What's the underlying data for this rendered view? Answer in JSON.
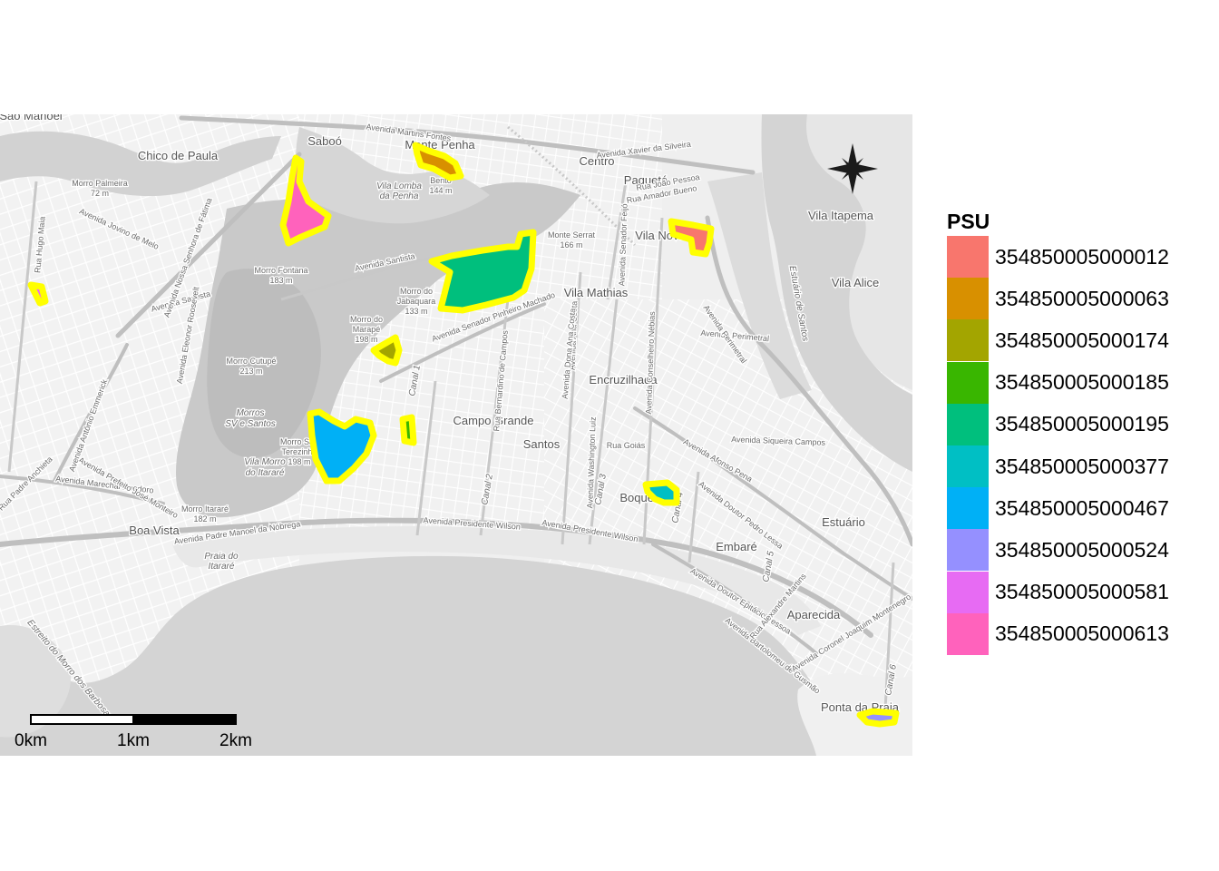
{
  "map": {
    "legend_title": "PSU",
    "psus": [
      {
        "id": "354850005000012",
        "color": "#F8766D"
      },
      {
        "id": "354850005000063",
        "color": "#D89000"
      },
      {
        "id": "354850005000174",
        "color": "#A3A500"
      },
      {
        "id": "354850005000185",
        "color": "#39B600"
      },
      {
        "id": "354850005000195",
        "color": "#00BF7D"
      },
      {
        "id": "354850005000377",
        "color": "#00BFC4"
      },
      {
        "id": "354850005000467",
        "color": "#00B0F6"
      },
      {
        "id": "354850005000524",
        "color": "#9590FF"
      },
      {
        "id": "354850005000581",
        "color": "#E76BF3"
      },
      {
        "id": "354850005000613",
        "color": "#FF62BC"
      }
    ],
    "outline_color": "#FFFF00",
    "scale_bar": {
      "labels": [
        "0km",
        "1km",
        "2km"
      ]
    },
    "place_labels": [
      {
        "text": "São Manoel",
        "cls": "big"
      },
      {
        "text": "Saboó",
        "cls": "big"
      },
      {
        "text": "Chico de Paula",
        "cls": "big"
      },
      {
        "text": "Morro Palmeira",
        "cls": "small"
      },
      {
        "text": "72 m",
        "cls": "small"
      },
      {
        "text": "Monte Penha",
        "cls": "big"
      },
      {
        "text": "Bento",
        "cls": "small"
      },
      {
        "text": "144 m",
        "cls": "small"
      },
      {
        "text": "Vila Lomba",
        "cls": "italic"
      },
      {
        "text": "da Penha",
        "cls": "italic"
      },
      {
        "text": "Centro",
        "cls": "big"
      },
      {
        "text": "Paquetá",
        "cls": "big"
      },
      {
        "text": "Vila Nova",
        "cls": "big"
      },
      {
        "text": "Vila Itapema",
        "cls": "big"
      },
      {
        "text": "Vila Alice",
        "cls": "big"
      },
      {
        "text": "Monte Serrat",
        "cls": "small"
      },
      {
        "text": "166 m",
        "cls": "small"
      },
      {
        "text": "Morro Fontana",
        "cls": "small"
      },
      {
        "text": "183 m",
        "cls": "small"
      },
      {
        "text": "Morro do",
        "cls": "small"
      },
      {
        "text": "Jabaquara",
        "cls": "small"
      },
      {
        "text": "133 m",
        "cls": "small"
      },
      {
        "text": "Morro do",
        "cls": "small"
      },
      {
        "text": "Marapé",
        "cls": "small"
      },
      {
        "text": "198 m",
        "cls": "small"
      },
      {
        "text": "Vila Mathias",
        "cls": "big"
      },
      {
        "text": "Morro Cutupé",
        "cls": "small"
      },
      {
        "text": "213 m",
        "cls": "small"
      },
      {
        "text": "Encruzilhada",
        "cls": "big"
      },
      {
        "text": "Morros",
        "cls": "italic"
      },
      {
        "text": "SV e Santos",
        "cls": "italic"
      },
      {
        "text": "Campo Grande",
        "cls": "big"
      },
      {
        "text": "Santos",
        "cls": "big"
      },
      {
        "text": "Rua Goiás",
        "cls": "small"
      },
      {
        "text": "Morro São",
        "cls": "small"
      },
      {
        "text": "Terezinha",
        "cls": "small"
      },
      {
        "text": "198 m",
        "cls": "small"
      },
      {
        "text": "Vila Morro",
        "cls": "italic"
      },
      {
        "text": "do Itararé",
        "cls": "italic"
      },
      {
        "text": "Boqueirão",
        "cls": "big"
      },
      {
        "text": "Morro Itararé",
        "cls": "small"
      },
      {
        "text": "182 m",
        "cls": "small"
      },
      {
        "text": "Boa Vista",
        "cls": "big"
      },
      {
        "text": "Estuário",
        "cls": "big"
      },
      {
        "text": "Embaré",
        "cls": "big"
      },
      {
        "text": "Praia do",
        "cls": "italic"
      },
      {
        "text": "Itararé",
        "cls": "italic"
      },
      {
        "text": "Aparecida",
        "cls": "big"
      },
      {
        "text": "Ponta da Praia",
        "cls": "big"
      },
      {
        "text": "Avenida Martins Fontes",
        "cls": "small"
      },
      {
        "text": "Avenida Xavier da Silveira",
        "cls": "small"
      },
      {
        "text": "Rua João Pessoa",
        "cls": "small"
      },
      {
        "text": "Rua Amador Bueno",
        "cls": "small"
      },
      {
        "text": "Avenida Jovino de Melo",
        "cls": "small"
      },
      {
        "text": "Avenida Santista",
        "cls": "small"
      },
      {
        "text": "Avenida Santista",
        "cls": "small"
      },
      {
        "text": "Avenida Senador Pinheiro Machado",
        "cls": "small"
      },
      {
        "text": "Avenida Perimetral",
        "cls": "small"
      },
      {
        "text": "Avenida Perimetral",
        "cls": "small"
      },
      {
        "text": "Avenida Siqueira Campos",
        "cls": "small"
      },
      {
        "text": "Avenida Afonso Pena",
        "cls": "small"
      },
      {
        "text": "Avenida Presidente Wilson",
        "cls": "small"
      },
      {
        "text": "Avenida Presidente Wilson",
        "cls": "small"
      },
      {
        "text": "Avenida Padre Manoel da Nóbrega",
        "cls": "small"
      },
      {
        "text": "Avenida Marechal Deodoro",
        "cls": "small"
      },
      {
        "text": "Avenida Prefeito José Monteiro",
        "cls": "small"
      },
      {
        "text": "Avenida Antônio Emmerick",
        "cls": "small"
      },
      {
        "text": "Avenida Nossa Senhora de Fátima",
        "cls": "small"
      },
      {
        "text": "Avenida Eleonor Roosevelt",
        "cls": "small"
      },
      {
        "text": "Avenida Ana Costa",
        "cls": "small"
      },
      {
        "text": "Avenida Conselheiro Nébias",
        "cls": "small"
      },
      {
        "text": "Avenida Washington Luiz",
        "cls": "small"
      },
      {
        "text": "Avenida Senador Feijó",
        "cls": "small"
      },
      {
        "text": "Avenida Doutor Pedro Lessa",
        "cls": "small"
      },
      {
        "text": "Avenida Doutor Epitácio Pessoa",
        "cls": "small"
      },
      {
        "text": "Avenida Bartolomeu de Gusmão",
        "cls": "small"
      },
      {
        "text": "Avenida Coronel Joaquim Montenegro",
        "cls": "small"
      },
      {
        "text": "Rua Alexandre Martins",
        "cls": "small"
      },
      {
        "text": "Estreito do Morro dos Barbosas",
        "cls": "italic"
      },
      {
        "text": "Estuário de Santos",
        "cls": "italic"
      },
      {
        "text": "Rua Hugo Maia",
        "cls": "small"
      },
      {
        "text": "Rua Padre Anchieta",
        "cls": "small"
      },
      {
        "text": "Canal 1",
        "cls": "italic"
      },
      {
        "text": "Canal 2",
        "cls": "italic"
      },
      {
        "text": "Canal 3",
        "cls": "italic"
      },
      {
        "text": "Canal 4",
        "cls": "italic"
      },
      {
        "text": "Canal 5",
        "cls": "italic"
      },
      {
        "text": "Canal 6",
        "cls": "italic"
      },
      {
        "text": "Rua Bernardino de Campos",
        "cls": "small"
      },
      {
        "text": "Avenida Dona Ana Costa",
        "cls": "small"
      }
    ]
  }
}
